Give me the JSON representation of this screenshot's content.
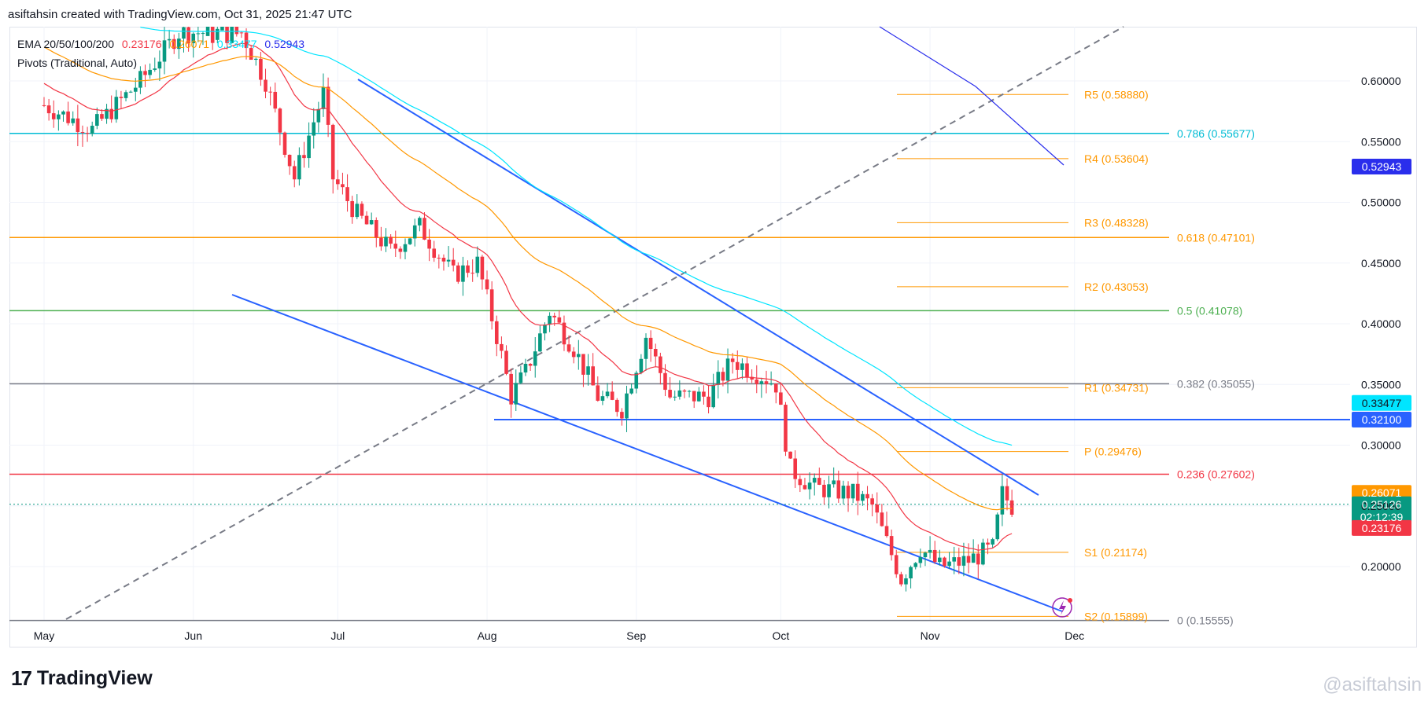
{
  "header": {
    "text": "asiftahsin created with TradingView.com, Oct 31, 2025 21:47 UTC"
  },
  "legend": {
    "ema": {
      "label": "EMA 20/50/100/200",
      "values": [
        {
          "text": "0.23176",
          "color": "#f23645"
        },
        {
          "text": "0.26071",
          "color": "#ff9800"
        },
        {
          "text": "0.33477",
          "color": "#00e5ff"
        },
        {
          "text": "0.52943",
          "color": "#2a2eec"
        }
      ]
    },
    "pivots": {
      "label": "Pivots (Traditional, Auto)"
    }
  },
  "footer": {
    "logo_text": "TradingView",
    "logo_mark": "17",
    "watermark": "@asiftahsin"
  },
  "colors": {
    "up": "#089981",
    "down": "#f23645",
    "channel": "#2962ff",
    "pivot": "#ff9800"
  },
  "chart_data": {
    "type": "candlestick",
    "ylim": [
      0.155,
      0.645
    ],
    "x_ticks": [
      "May",
      "Jun",
      "Jul",
      "Aug",
      "Sep",
      "Oct",
      "Nov",
      "Dec"
    ],
    "y_ticks": [
      "0.20000",
      "0.25000",
      "0.30000",
      "0.35000",
      "0.40000",
      "0.45000",
      "0.50000",
      "0.55000",
      "0.60000"
    ],
    "current_price": 0.25126,
    "countdown": "02:12:39",
    "fibonacci": [
      {
        "label": "0.786 (0.55677)",
        "price": 0.55677,
        "color": "#00bcd4"
      },
      {
        "label": "0.618 (0.47101)",
        "price": 0.47101,
        "color": "#ff9800"
      },
      {
        "label": "0.5 (0.41078)",
        "price": 0.41078,
        "color": "#4caf50"
      },
      {
        "label": "0.382 (0.35055)",
        "price": 0.35055,
        "color": "#787b86"
      },
      {
        "label": "0.236 (0.27602)",
        "price": 0.27602,
        "color": "#f23645"
      },
      {
        "label": "0 (0.15555)",
        "price": 0.15555,
        "color": "#787b86"
      }
    ],
    "pivots": [
      {
        "label": "R5 (0.58880)",
        "price": 0.5888
      },
      {
        "label": "R4 (0.53604)",
        "price": 0.53604
      },
      {
        "label": "R3 (0.48328)",
        "price": 0.48328
      },
      {
        "label": "R2 (0.43053)",
        "price": 0.43053
      },
      {
        "label": "R1 (0.34731)",
        "price": 0.34731
      },
      {
        "label": "P (0.29476)",
        "price": 0.29476
      },
      {
        "label": "S1 (0.21174)",
        "price": 0.21174
      },
      {
        "label": "S2 (0.15899)",
        "price": 0.15899
      }
    ],
    "horizontal_support": {
      "price": 0.321,
      "label": "0.32100"
    },
    "price_badges": [
      {
        "text": "0.52943",
        "price": 0.52943,
        "bg": "#2a2eec",
        "fg": "#ffffff"
      },
      {
        "text": "0.33477",
        "price": 0.33477,
        "bg": "#00e5ff",
        "fg": "#131722"
      },
      {
        "text": "0.32100",
        "price": 0.321,
        "bg": "#2962ff",
        "fg": "#ffffff"
      },
      {
        "text": "0.26071",
        "price": 0.26071,
        "bg": "#ff9800",
        "fg": "#ffffff"
      },
      {
        "text": "0.25126",
        "price": 0.25126,
        "bg": "#089981",
        "fg": "#ffffff"
      },
      {
        "text": "0.23176",
        "price": 0.23176,
        "bg": "#f23645",
        "fg": "#ffffff"
      }
    ]
  }
}
